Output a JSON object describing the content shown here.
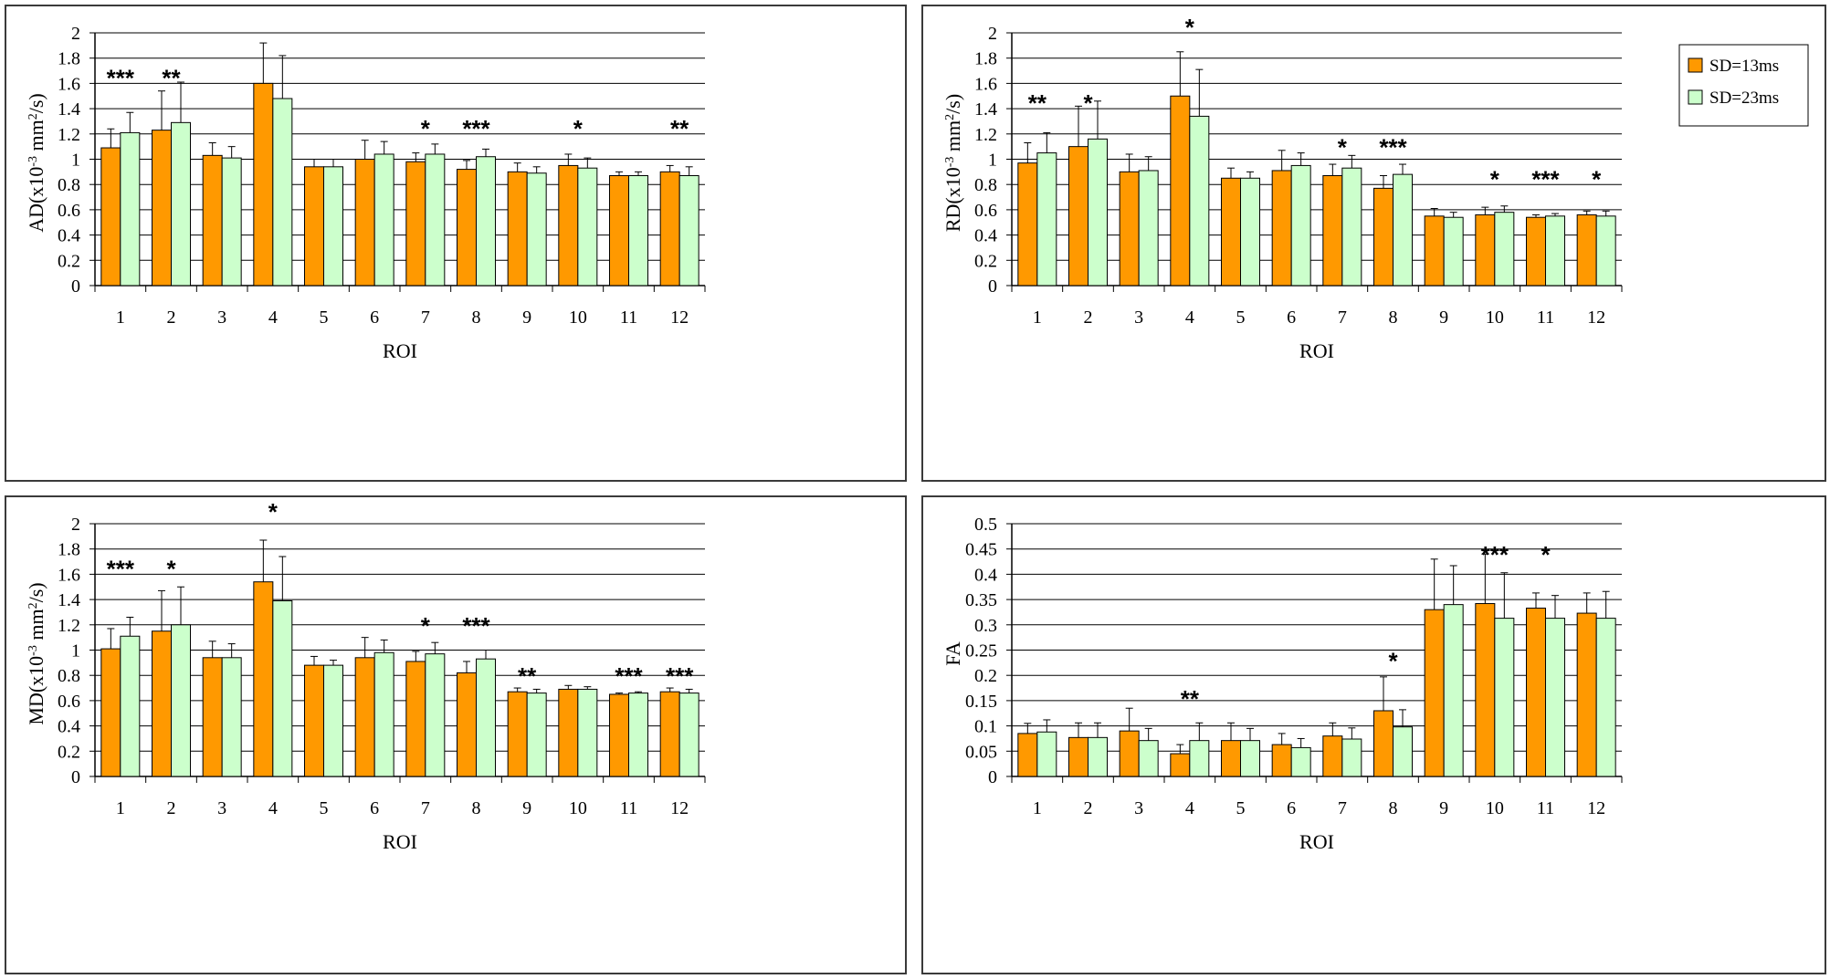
{
  "chart_data": [
    {
      "type": "bar",
      "xlabel": "ROI",
      "ylabel": "AD(x10-3 mm2/s)",
      "ylabel_parts": {
        "pre": "AD(x10",
        "sup1": "-3",
        "mid": " mm",
        "sup2": "2",
        "post": "/s)"
      },
      "ylim": [
        0,
        2
      ],
      "yticks": [
        "0",
        "0.2",
        "0.4",
        "0.6",
        "0.8",
        "1",
        "1.2",
        "1.4",
        "1.6",
        "1.8",
        "2"
      ],
      "categories": [
        "1",
        "2",
        "3",
        "4",
        "5",
        "6",
        "7",
        "8",
        "9",
        "10",
        "11",
        "12"
      ],
      "series": [
        {
          "name": "SD=13ms",
          "color": "#ff9900",
          "values": [
            1.09,
            1.23,
            1.03,
            1.6,
            0.94,
            1.0,
            0.98,
            0.92,
            0.9,
            0.95,
            0.87,
            0.9
          ],
          "errors": [
            0.15,
            0.31,
            0.1,
            0.32,
            0.06,
            0.15,
            0.07,
            0.07,
            0.07,
            0.09,
            0.03,
            0.05
          ]
        },
        {
          "name": "SD=23ms",
          "color": "#ccffcc",
          "values": [
            1.21,
            1.29,
            1.01,
            1.48,
            0.94,
            1.04,
            1.04,
            1.02,
            0.89,
            0.93,
            0.87,
            0.87
          ],
          "errors": [
            0.16,
            0.32,
            0.09,
            0.34,
            0.06,
            0.1,
            0.08,
            0.06,
            0.05,
            0.08,
            0.03,
            0.07
          ]
        }
      ],
      "significance": [
        "***",
        "**",
        "",
        "",
        "",
        "",
        "*",
        "***",
        "",
        "*",
        "",
        "**"
      ],
      "sig_y": [
        1.65,
        1.65,
        null,
        null,
        null,
        null,
        1.25,
        1.25,
        null,
        1.25,
        null,
        1.25
      ],
      "legend": false
    },
    {
      "type": "bar",
      "xlabel": "ROI",
      "ylabel": "RD(x10-3 mm2/s)",
      "ylabel_parts": {
        "pre": "RD(x10",
        "sup1": "-3",
        "mid": " mm",
        "sup2": "2",
        "post": "/s)"
      },
      "ylim": [
        0,
        2
      ],
      "yticks": [
        "0",
        "0.2",
        "0.4",
        "0.6",
        "0.8",
        "1",
        "1.2",
        "1.4",
        "1.6",
        "1.8",
        "2"
      ],
      "categories": [
        "1",
        "2",
        "3",
        "4",
        "5",
        "6",
        "7",
        "8",
        "9",
        "10",
        "11",
        "12"
      ],
      "series": [
        {
          "name": "SD=13ms",
          "color": "#ff9900",
          "values": [
            0.97,
            1.1,
            0.9,
            1.5,
            0.85,
            0.91,
            0.87,
            0.77,
            0.55,
            0.56,
            0.54,
            0.56
          ],
          "errors": [
            0.16,
            0.32,
            0.14,
            0.35,
            0.08,
            0.16,
            0.09,
            0.1,
            0.06,
            0.06,
            0.02,
            0.03
          ]
        },
        {
          "name": "SD=23ms",
          "color": "#ccffcc",
          "values": [
            1.05,
            1.16,
            0.91,
            1.34,
            0.85,
            0.95,
            0.93,
            0.88,
            0.54,
            0.58,
            0.55,
            0.55
          ],
          "errors": [
            0.16,
            0.3,
            0.11,
            0.37,
            0.05,
            0.1,
            0.1,
            0.08,
            0.04,
            0.05,
            0.02,
            0.04
          ]
        }
      ],
      "significance": [
        "**",
        "*",
        "",
        "*",
        "",
        "",
        "*",
        "***",
        "",
        "*",
        "***",
        "*"
      ],
      "sig_y": [
        1.45,
        1.45,
        null,
        2.05,
        null,
        null,
        1.1,
        1.1,
        null,
        0.85,
        0.85,
        0.85
      ],
      "legend": true
    },
    {
      "type": "bar",
      "xlabel": "ROI",
      "ylabel": "MD(x10-3 mm2/s)",
      "ylabel_parts": {
        "pre": "MD(x10",
        "sup1": "-3",
        "mid": " mm",
        "sup2": "2",
        "post": "/s)"
      },
      "ylim": [
        0,
        2
      ],
      "yticks": [
        "0",
        "0.2",
        "0.4",
        "0.6",
        "0.8",
        "1",
        "1.2",
        "1.4",
        "1.6",
        "1.8",
        "2"
      ],
      "categories": [
        "1",
        "2",
        "3",
        "4",
        "5",
        "6",
        "7",
        "8",
        "9",
        "10",
        "11",
        "12"
      ],
      "series": [
        {
          "name": "SD=13ms",
          "color": "#ff9900",
          "values": [
            1.01,
            1.15,
            0.94,
            1.54,
            0.88,
            0.94,
            0.91,
            0.82,
            0.67,
            0.69,
            0.65,
            0.67
          ],
          "errors": [
            0.16,
            0.32,
            0.13,
            0.33,
            0.07,
            0.16,
            0.08,
            0.09,
            0.03,
            0.03,
            0.01,
            0.03
          ]
        },
        {
          "name": "SD=23ms",
          "color": "#ccffcc",
          "values": [
            1.11,
            1.2,
            0.94,
            1.39,
            0.88,
            0.98,
            0.97,
            0.93,
            0.66,
            0.69,
            0.66,
            0.66
          ],
          "errors": [
            0.15,
            0.3,
            0.11,
            0.35,
            0.04,
            0.1,
            0.09,
            0.07,
            0.03,
            0.02,
            0.01,
            0.03
          ]
        }
      ],
      "significance": [
        "***",
        "*",
        "",
        "*",
        "",
        "",
        "*",
        "***",
        "**",
        "",
        "***",
        "***"
      ],
      "sig_y": [
        1.65,
        1.65,
        null,
        2.1,
        null,
        null,
        1.2,
        1.2,
        0.8,
        null,
        0.8,
        0.8
      ],
      "legend": false
    },
    {
      "type": "bar",
      "xlabel": "ROI",
      "ylabel": "FA",
      "ylabel_parts": {
        "pre": "FA",
        "sup1": "",
        "mid": "",
        "sup2": "",
        "post": ""
      },
      "ylim": [
        0,
        0.5
      ],
      "yticks": [
        "0",
        "0.05",
        "0.1",
        "0.15",
        "0.2",
        "0.25",
        "0.3",
        "0.35",
        "0.4",
        "0.45",
        "0.5"
      ],
      "categories": [
        "1",
        "2",
        "3",
        "4",
        "5",
        "6",
        "7",
        "8",
        "9",
        "10",
        "11",
        "12"
      ],
      "series": [
        {
          "name": "SD=13ms",
          "color": "#ff9900",
          "values": [
            0.085,
            0.077,
            0.09,
            0.045,
            0.071,
            0.063,
            0.08,
            0.13,
            0.33,
            0.342,
            0.333,
            0.323
          ],
          "errors": [
            0.02,
            0.029,
            0.045,
            0.018,
            0.035,
            0.022,
            0.026,
            0.067,
            0.1,
            0.098,
            0.03,
            0.04
          ]
        },
        {
          "name": "SD=23ms",
          "color": "#ccffcc",
          "values": [
            0.088,
            0.077,
            0.071,
            0.071,
            0.071,
            0.057,
            0.074,
            0.098,
            0.34,
            0.313,
            0.313,
            0.313
          ],
          "errors": [
            0.024,
            0.029,
            0.024,
            0.035,
            0.024,
            0.018,
            0.022,
            0.034,
            0.077,
            0.09,
            0.045,
            0.053
          ]
        }
      ],
      "significance": [
        "",
        "",
        "",
        "**",
        "",
        "",
        "",
        "*",
        "",
        "***",
        "*",
        ""
      ],
      "sig_y": [
        null,
        null,
        null,
        0.155,
        null,
        null,
        null,
        0.23,
        null,
        0.44,
        0.44,
        null
      ],
      "legend": false
    }
  ]
}
